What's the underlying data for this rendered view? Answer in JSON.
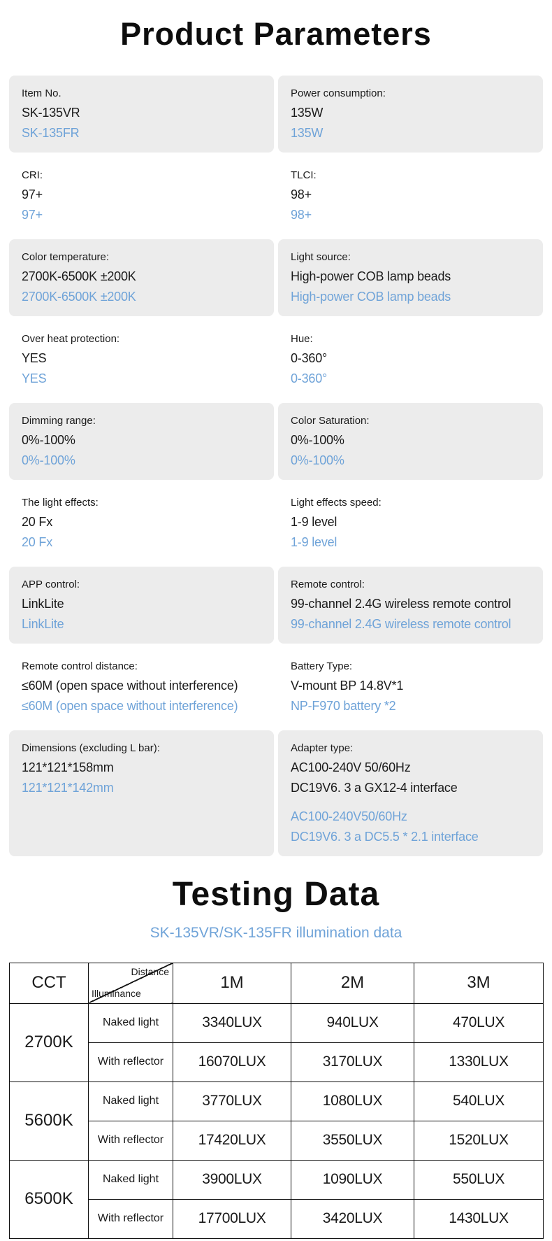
{
  "page": {
    "title": "Product Parameters",
    "testing_title": "Testing Data",
    "testing_subtitle": "SK-135VR/SK-135FR illumination data"
  },
  "colors": {
    "accent_blue": "#6fa3d8",
    "box_gray": "#ececec",
    "text_black": "#1a1a1a"
  },
  "specs": {
    "rows": [
      {
        "cells": [
          {
            "label": "Item No.",
            "black": [
              "SK-135VR"
            ],
            "blue": [
              "SK-135FR"
            ]
          },
          {
            "label": "Power consumption:",
            "black": [
              "135W"
            ],
            "blue": [
              "135W"
            ]
          }
        ]
      },
      {
        "cells": [
          {
            "label": "CRI:",
            "black": [
              "97+"
            ],
            "blue": [
              "97+"
            ]
          },
          {
            "label": "TLCI:",
            "black": [
              "98+"
            ],
            "blue": [
              "98+"
            ]
          }
        ]
      },
      {
        "cells": [
          {
            "label": "Color temperature:",
            "black": [
              "2700K-6500K ±200K"
            ],
            "blue": [
              "2700K-6500K ±200K"
            ]
          },
          {
            "label": "Light source:",
            "black": [
              "High-power COB lamp beads"
            ],
            "blue": [
              "High-power COB lamp beads"
            ]
          }
        ]
      },
      {
        "cells": [
          {
            "label": "Over heat protection:",
            "black": [
              "YES"
            ],
            "blue": [
              "YES"
            ]
          },
          {
            "label": "Hue:",
            "black": [
              "0-360°"
            ],
            "blue": [
              "0-360°"
            ]
          }
        ]
      },
      {
        "cells": [
          {
            "label": "Dimming range:",
            "black": [
              "0%-100%"
            ],
            "blue": [
              "0%-100%"
            ]
          },
          {
            "label": "Color Saturation:",
            "black": [
              "0%-100%"
            ],
            "blue": [
              "0%-100%"
            ]
          }
        ]
      },
      {
        "cells": [
          {
            "label": "The light effects:",
            "black": [
              "20 Fx"
            ],
            "blue": [
              "20 Fx"
            ]
          },
          {
            "label": "Light effects speed:",
            "black": [
              "1-9 level"
            ],
            "blue": [
              "1-9 level"
            ]
          }
        ]
      },
      {
        "cells": [
          {
            "label": "APP control:",
            "black": [
              "LinkLite"
            ],
            "blue": [
              "LinkLite"
            ]
          },
          {
            "label": "Remote control:",
            "black": [
              "99-channel 2.4G wireless remote control"
            ],
            "blue": [
              "99-channel 2.4G wireless remote control"
            ]
          }
        ]
      },
      {
        "cells": [
          {
            "label": "Remote control distance:",
            "black": [
              "≤60M (open space without interference)"
            ],
            "blue": [
              "≤60M (open space without interference)"
            ]
          },
          {
            "label": "Battery Type:",
            "black": [
              "V-mount BP 14.8V*1"
            ],
            "blue": [
              "NP-F970 battery *2"
            ]
          }
        ]
      },
      {
        "cells": [
          {
            "label": "Dimensions (excluding L bar):",
            "black": [
              "121*121*158mm"
            ],
            "blue": [
              "121*121*142mm"
            ]
          },
          {
            "label": "Adapter type:",
            "black": [
              "AC100-240V 50/60Hz",
              "DC19V6. 3 a GX12-4 interface"
            ],
            "blue": [
              "AC100-240V50/60Hz",
              "DC19V6. 3 a DC5.5 * 2.1 interface"
            ]
          }
        ]
      }
    ]
  },
  "testing_table": {
    "corner": {
      "top": "Distance",
      "bottom": "Illuminance"
    },
    "col_headers": [
      "CCT",
      "1M",
      "2M",
      "3M"
    ],
    "row_labels": {
      "naked": "Naked light",
      "reflector": "With reflector"
    },
    "groups": [
      {
        "cct": "2700K",
        "naked": [
          "3340LUX",
          "940LUX",
          "470LUX"
        ],
        "reflector": [
          "16070LUX",
          "3170LUX",
          "1330LUX"
        ]
      },
      {
        "cct": "5600K",
        "naked": [
          "3770LUX",
          "1080LUX",
          "540LUX"
        ],
        "reflector": [
          "17420LUX",
          "3550LUX",
          "1520LUX"
        ]
      },
      {
        "cct": "6500K",
        "naked": [
          "3900LUX",
          "1090LUX",
          "550LUX"
        ],
        "reflector": [
          "17700LUX",
          "3420LUX",
          "1430LUX"
        ]
      }
    ]
  }
}
